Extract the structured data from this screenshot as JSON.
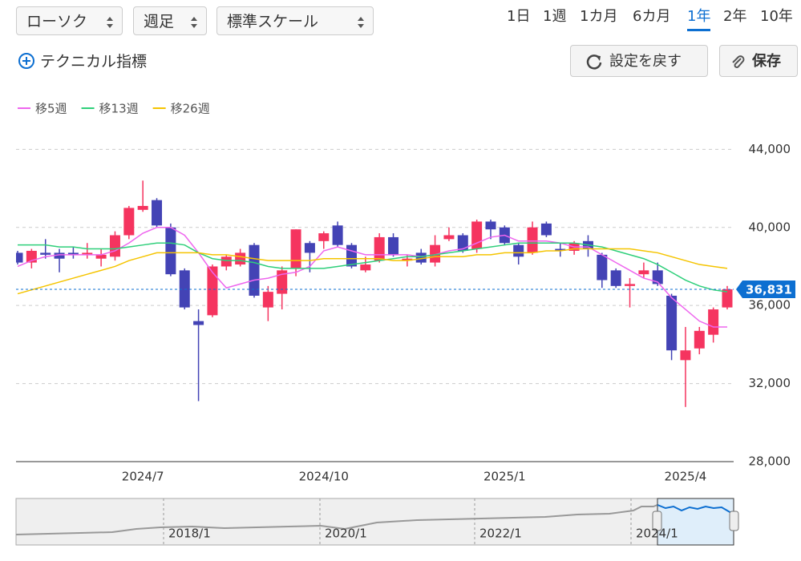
{
  "controls": {
    "selects": [
      "ローソク",
      "週足",
      "標準スケール"
    ],
    "periods": [
      "1日",
      "1週",
      "1カ月",
      "6カ月",
      "1年",
      "2年",
      "10年"
    ],
    "active_period_index": 4,
    "technical": "テクニカル指標",
    "reset": "設定を戻す",
    "save": "保存"
  },
  "chart_data": {
    "type": "candlestick",
    "categories": [
      null,
      null,
      null,
      null,
      null,
      null,
      null,
      null,
      null,
      "2024/7",
      null,
      null,
      null,
      null,
      null,
      null,
      null,
      null,
      null,
      null,
      null,
      null,
      "2024/10",
      null,
      null,
      null,
      null,
      null,
      null,
      null,
      null,
      null,
      null,
      null,
      null,
      "2025/1",
      null,
      null,
      null,
      null,
      null,
      null,
      null,
      null,
      null,
      null,
      null,
      null,
      "2025/4",
      null,
      null,
      null
    ],
    "open": [
      38700,
      38200,
      38700,
      38700,
      38700,
      38600,
      38400,
      38500,
      39600,
      40900,
      41400,
      40000,
      37800,
      35200,
      35500,
      38000,
      38100,
      39100,
      35900,
      36600,
      37900,
      39200,
      39300,
      40100,
      39100,
      37800,
      38300,
      39500,
      38300,
      38700,
      38200,
      39400,
      39600,
      38900,
      40300,
      40000,
      39100,
      38700,
      40200,
      38900,
      38800,
      39300,
      38600,
      37800,
      37000,
      37600,
      37800,
      36500,
      33200,
      33800,
      34500,
      35900
    ],
    "high": [
      38800,
      38900,
      39400,
      38900,
      39000,
      39200,
      38900,
      39800,
      41100,
      42400,
      41500,
      40200,
      37900,
      35800,
      38100,
      38600,
      38900,
      39200,
      37000,
      38000,
      39900,
      39300,
      39800,
      40300,
      39200,
      38500,
      39700,
      39700,
      38600,
      38900,
      39600,
      40000,
      39700,
      40400,
      40400,
      40100,
      39200,
      40300,
      40300,
      39200,
      39300,
      39600,
      38700,
      37900,
      37400,
      38200,
      38200,
      36600,
      34900,
      34900,
      35900,
      37000
    ],
    "low": [
      38100,
      37900,
      38400,
      37700,
      38400,
      38400,
      38000,
      38300,
      39400,
      40800,
      40000,
      37500,
      35800,
      31100,
      35400,
      37800,
      38000,
      36400,
      35200,
      35800,
      37500,
      37700,
      38900,
      39000,
      37900,
      37700,
      38200,
      38500,
      38000,
      38100,
      38000,
      39300,
      38700,
      38700,
      39400,
      39100,
      38100,
      38600,
      39500,
      38500,
      38600,
      38500,
      36900,
      36900,
      35900,
      37400,
      37000,
      33200,
      30800,
      33500,
      34100,
      35800
    ],
    "close": [
      38200,
      38800,
      38600,
      38400,
      38600,
      38700,
      38600,
      39600,
      41000,
      41100,
      40100,
      37600,
      35900,
      35000,
      38000,
      38500,
      38700,
      36500,
      36700,
      37800,
      39900,
      38700,
      39700,
      39100,
      38000,
      38100,
      39500,
      38600,
      38400,
      38200,
      39100,
      39600,
      38800,
      40300,
      39900,
      39200,
      38500,
      40000,
      39600,
      38800,
      39200,
      38900,
      37300,
      37000,
      37100,
      37800,
      37100,
      33700,
      33700,
      34700,
      35800,
      36831
    ],
    "up_color": "#f5345f",
    "down_color": "#4343b5",
    "overlays": [
      {
        "name": "移5週",
        "color": "#ee66ee",
        "values": [
          38000,
          38300,
          38500,
          38600,
          38600,
          38600,
          38600,
          38800,
          39200,
          39700,
          40000,
          40000,
          39600,
          38700,
          37700,
          36900,
          37100,
          37300,
          37400,
          37600,
          37700,
          38000,
          38800,
          39000,
          38800,
          38600,
          38600,
          38600,
          38600,
          38500,
          38600,
          38800,
          38900,
          39200,
          39500,
          39600,
          39300,
          39300,
          39300,
          39200,
          39000,
          39000,
          38600,
          38200,
          37800,
          37400,
          37200,
          36400,
          35800,
          35200,
          34900,
          34900
        ]
      },
      {
        "name": "移13週",
        "color": "#2ecf7a",
        "values": [
          39100,
          39100,
          39100,
          39000,
          39000,
          38900,
          38900,
          38900,
          39000,
          39100,
          39200,
          39200,
          39100,
          38700,
          38400,
          38300,
          38300,
          38200,
          38000,
          37900,
          37900,
          37900,
          37900,
          38000,
          38100,
          38200,
          38300,
          38400,
          38500,
          38500,
          38600,
          38700,
          38800,
          38900,
          39000,
          39100,
          39200,
          39200,
          39200,
          39200,
          39200,
          39100,
          39000,
          38800,
          38600,
          38400,
          38100,
          37700,
          37300,
          37000,
          36800,
          36700
        ]
      },
      {
        "name": "移26週",
        "color": "#f5c400",
        "values": [
          36600,
          36800,
          37000,
          37200,
          37400,
          37600,
          37800,
          38000,
          38300,
          38500,
          38700,
          38700,
          38700,
          38700,
          38600,
          38600,
          38500,
          38400,
          38300,
          38300,
          38300,
          38300,
          38400,
          38400,
          38400,
          38400,
          38400,
          38300,
          38300,
          38400,
          38500,
          38500,
          38500,
          38600,
          38600,
          38700,
          38700,
          38700,
          38800,
          38800,
          38900,
          38900,
          38900,
          38900,
          38900,
          38800,
          38700,
          38500,
          38300,
          38100,
          38000,
          37900
        ]
      }
    ],
    "ylim": [
      28000,
      45000
    ],
    "yticks": [
      {
        "value": 28000,
        "label": "28,000"
      },
      {
        "value": 32000,
        "label": "32,000"
      },
      {
        "value": 36000,
        "label": "36,000"
      },
      {
        "value": 40000,
        "label": "40,000"
      },
      {
        "value": 44000,
        "label": "44,000"
      }
    ],
    "grid": true,
    "last": {
      "value": 36831,
      "label": "36,831",
      "color": "#0d6fd1"
    }
  },
  "navigator": {
    "labels": [
      "2018/1",
      "2020/1",
      "2022/1",
      "2024/1"
    ]
  }
}
